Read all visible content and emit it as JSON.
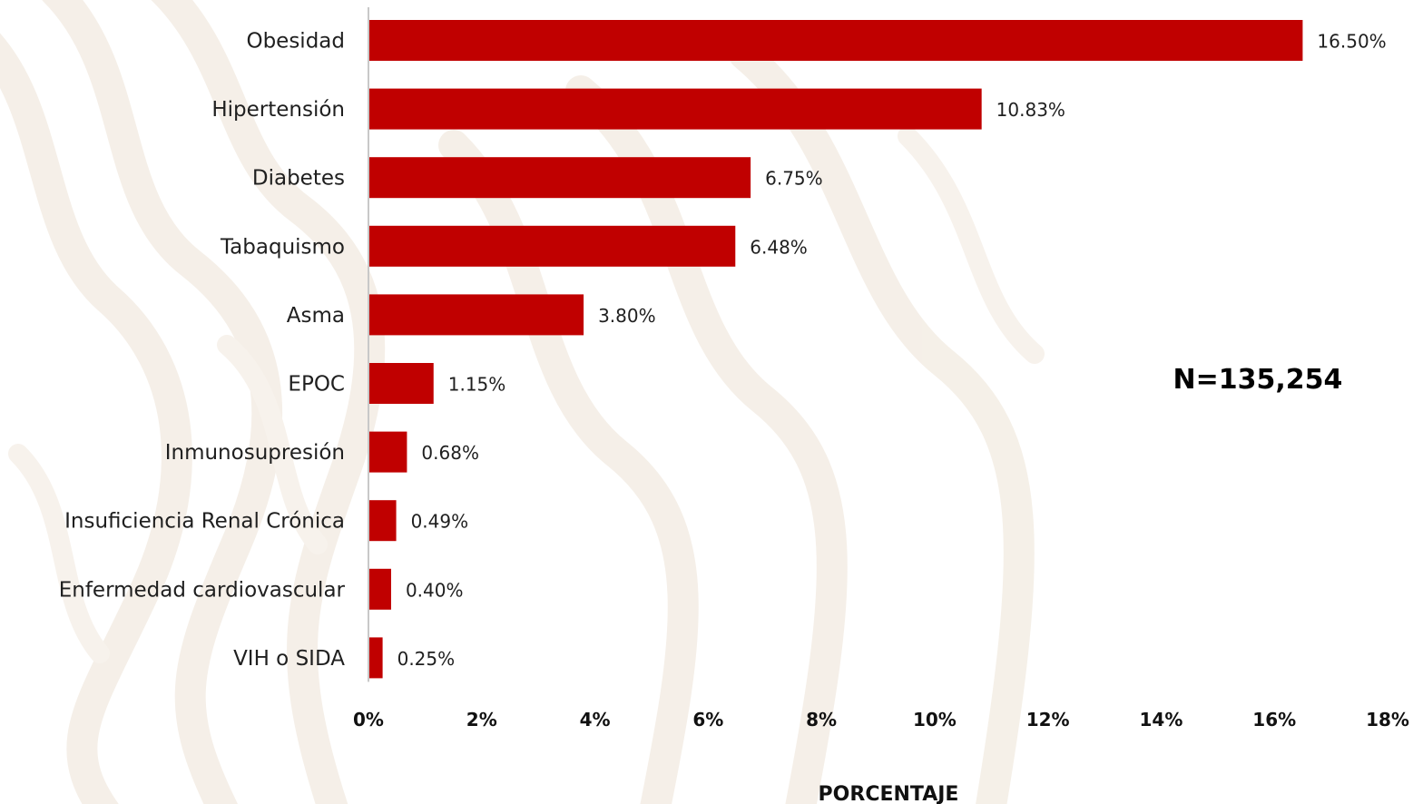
{
  "chart_data": {
    "type": "bar",
    "orientation": "horizontal",
    "categories": [
      "Obesidad",
      "Hipertensión",
      "Diabetes",
      "Tabaquismo",
      "Asma",
      "EPOC",
      "Inmunosupresión",
      "Insuficiencia Renal Crónica",
      "Enfermedad cardiovascular",
      "VIH o SIDA"
    ],
    "values": [
      16.5,
      10.83,
      6.75,
      6.48,
      3.8,
      1.15,
      0.68,
      0.49,
      0.4,
      0.25
    ],
    "value_labels": [
      "16.50%",
      "10.83%",
      "6.75%",
      "6.48%",
      "3.80%",
      "1.15%",
      "0.68%",
      "0.49%",
      "0.40%",
      "0.25%"
    ],
    "xlim": [
      0,
      18
    ],
    "xticks": [
      0,
      2,
      4,
      6,
      8,
      10,
      12,
      14,
      16,
      18
    ],
    "xtick_labels": [
      "0%",
      "2%",
      "4%",
      "6%",
      "8%",
      "10%",
      "12%",
      "14%",
      "16%",
      "18%"
    ],
    "xlabel": "PORCENTAJE",
    "ylabel": "",
    "title": "",
    "annotation": "N=135,254",
    "grid": false,
    "colors": {
      "bar": "#c00000",
      "axis": "#c8c8c8",
      "background_pattern": "#f3ede5"
    }
  }
}
